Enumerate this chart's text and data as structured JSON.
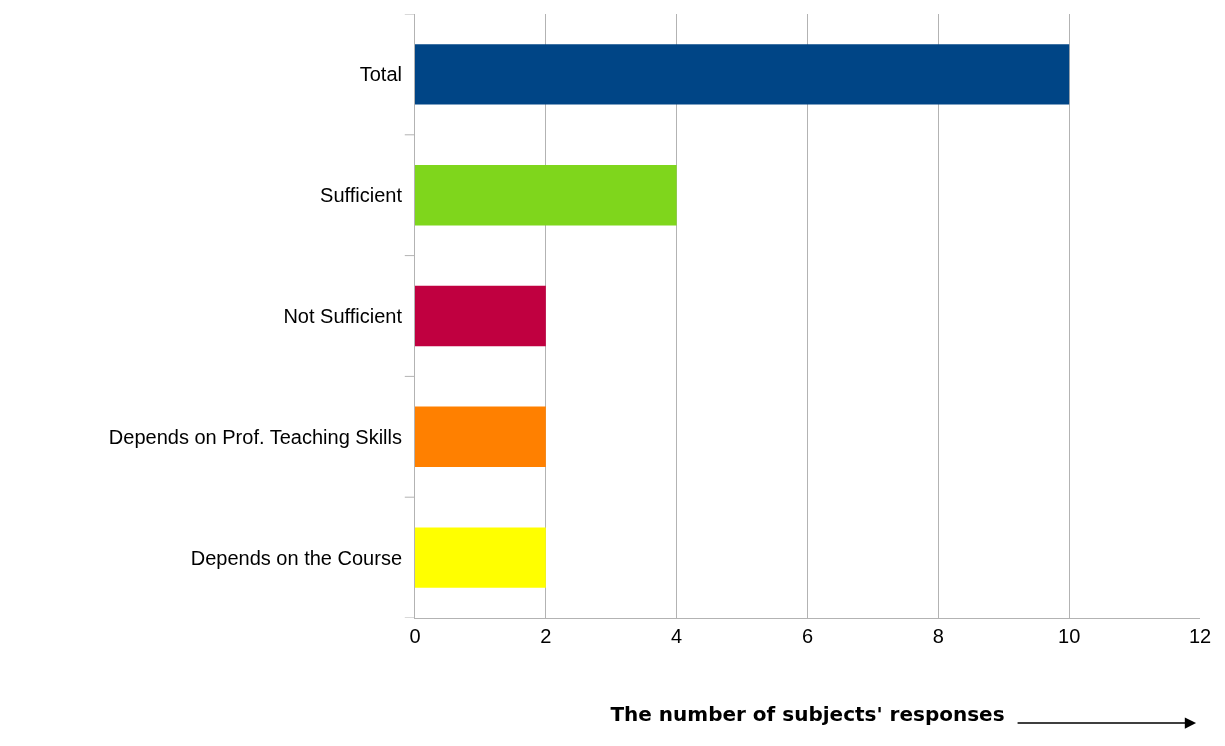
{
  "chart_data": {
    "type": "bar",
    "orientation": "horizontal",
    "xlabel": "The number of subjects' responses",
    "categories": [
      "Total",
      "Sufficient",
      "Not Sufficient",
      "Depends on Prof. Teaching Skills",
      "Depends on the Course"
    ],
    "values": [
      10,
      4,
      2,
      2,
      2
    ],
    "colors": [
      "#004586",
      "#7fd61c",
      "#c00040",
      "#ff8000",
      "#ffff00"
    ],
    "xlim": [
      0,
      12
    ],
    "xticks": [
      0,
      2,
      4,
      6,
      8,
      10,
      12
    ],
    "grid": "x",
    "legend": false
  }
}
